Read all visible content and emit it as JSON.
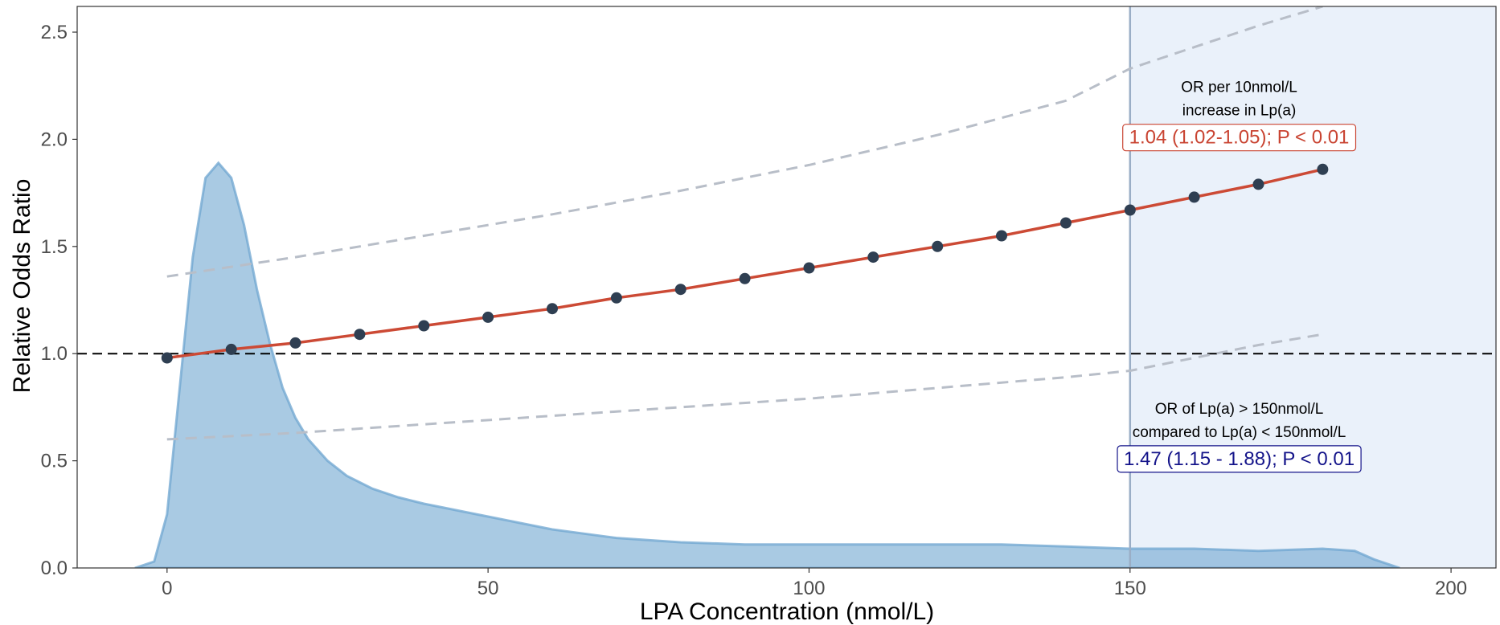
{
  "chart_data": {
    "type": "line",
    "xlabel": "LPA Concentration (nmol/L)",
    "ylabel": "Relative Odds Ratio",
    "xlim": [
      -14,
      207
    ],
    "ylim": [
      0,
      2.62
    ],
    "x_ticks": [
      0,
      50,
      100,
      150,
      200
    ],
    "y_ticks": [
      0.0,
      0.5,
      1.0,
      1.5,
      2.0,
      2.5
    ],
    "x_tick_labels": [
      "0",
      "50",
      "100",
      "150",
      "200"
    ],
    "y_tick_labels": [
      "0.0",
      "0.5",
      "1.0",
      "1.5",
      "2.0",
      "2.5"
    ],
    "grid": false,
    "reference_line_y": 1.0,
    "threshold_x": 150,
    "series": [
      {
        "role": "odds_ratio_line",
        "color": "#cc4a35",
        "marker_color": "#2f3f52",
        "x": [
          0,
          10,
          20,
          30,
          40,
          50,
          60,
          70,
          80,
          90,
          100,
          110,
          120,
          130,
          140,
          150,
          160,
          170,
          180
        ],
        "values": [
          0.98,
          1.02,
          1.05,
          1.09,
          1.13,
          1.17,
          1.21,
          1.26,
          1.3,
          1.35,
          1.4,
          1.45,
          1.5,
          1.55,
          1.61,
          1.67,
          1.73,
          1.79,
          1.86
        ]
      },
      {
        "role": "upper_ci",
        "color": "#b8bec8",
        "x": [
          0,
          20,
          40,
          60,
          80,
          100,
          120,
          140,
          150,
          160,
          170,
          180
        ],
        "values": [
          1.36,
          1.45,
          1.55,
          1.65,
          1.76,
          1.88,
          2.02,
          2.18,
          2.33,
          2.43,
          2.53,
          2.62
        ]
      },
      {
        "role": "lower_ci",
        "color": "#b8bec8",
        "x": [
          0,
          20,
          40,
          60,
          80,
          100,
          120,
          140,
          150,
          160,
          170,
          180
        ],
        "values": [
          0.6,
          0.63,
          0.67,
          0.71,
          0.75,
          0.79,
          0.84,
          0.89,
          0.92,
          0.98,
          1.04,
          1.09
        ]
      },
      {
        "role": "density",
        "color": "#6fa6d0",
        "x": [
          -5,
          -2,
          0,
          2,
          4,
          6,
          8,
          10,
          12,
          14,
          16,
          18,
          20,
          22,
          25,
          28,
          32,
          36,
          40,
          45,
          50,
          55,
          60,
          65,
          70,
          80,
          90,
          100,
          110,
          120,
          130,
          140,
          150,
          160,
          170,
          180,
          185,
          188,
          192
        ],
        "values": [
          0,
          0.03,
          0.25,
          0.85,
          1.45,
          1.82,
          1.89,
          1.82,
          1.6,
          1.3,
          1.05,
          0.84,
          0.7,
          0.6,
          0.5,
          0.43,
          0.37,
          0.33,
          0.3,
          0.27,
          0.24,
          0.21,
          0.18,
          0.16,
          0.14,
          0.12,
          0.11,
          0.11,
          0.11,
          0.11,
          0.11,
          0.1,
          0.09,
          0.09,
          0.08,
          0.09,
          0.08,
          0.04,
          0
        ]
      }
    ],
    "annotations": [
      {
        "lines": [
          "OR per 10nmol/L",
          "increase in Lp(a)"
        ],
        "value": "1.04 (1.02-1.05); P < 0.01",
        "value_color": "#c94432",
        "x": 167,
        "y_top": 2.22
      },
      {
        "lines": [
          "OR of Lp(a) > 150nmol/L",
          "compared to Lp(a) < 150nmol/L"
        ],
        "value": "1.47 (1.15 - 1.88); P < 0.01",
        "value_color": "#14148a",
        "x": 167,
        "y_top": 0.72
      }
    ]
  }
}
